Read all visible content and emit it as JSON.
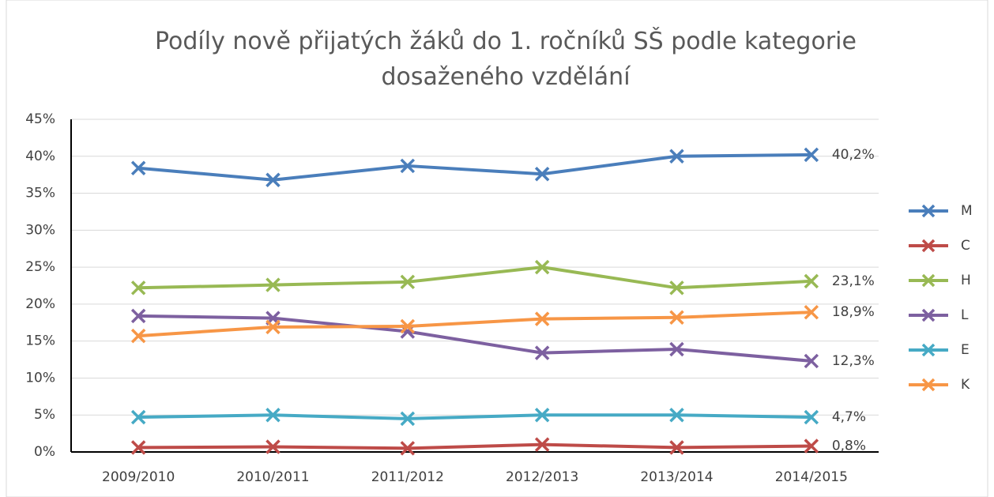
{
  "chart_data": {
    "type": "line",
    "title": "Podíly nově přijatých žáků do 1. ročníků SŠ podle kategorie dosaženého vzdělání",
    "categories": [
      "2009/2010",
      "2010/2011",
      "2011/2012",
      "2012/2013",
      "2013/2014",
      "2014/2015"
    ],
    "series": [
      {
        "name": "M",
        "color": "#4a7ebb",
        "values": [
          38.4,
          36.8,
          38.7,
          37.6,
          40.0,
          40.2
        ],
        "value_labels": [
          null,
          null,
          null,
          null,
          null,
          "40,2%"
        ]
      },
      {
        "name": "C",
        "color": "#be4b48",
        "values": [
          0.6,
          0.7,
          0.5,
          1.0,
          0.6,
          0.8
        ],
        "value_labels": [
          null,
          null,
          null,
          null,
          null,
          "0,8%"
        ]
      },
      {
        "name": "H",
        "color": "#98b954",
        "values": [
          22.2,
          22.6,
          23.0,
          25.0,
          22.2,
          23.1
        ],
        "value_labels": [
          null,
          null,
          null,
          null,
          null,
          "23,1%"
        ]
      },
      {
        "name": "L",
        "color": "#7d60a0",
        "values": [
          18.4,
          18.1,
          16.3,
          13.4,
          13.9,
          12.3
        ],
        "value_labels": [
          null,
          null,
          null,
          null,
          null,
          "12,3%"
        ]
      },
      {
        "name": "E",
        "color": "#46aac5",
        "values": [
          4.7,
          5.0,
          4.5,
          5.0,
          5.0,
          4.7
        ],
        "value_labels": [
          null,
          null,
          null,
          null,
          null,
          "4,7%"
        ]
      },
      {
        "name": "K",
        "color": "#f79646",
        "values": [
          15.7,
          16.9,
          17.0,
          18.0,
          18.2,
          18.9
        ],
        "value_labels": [
          null,
          null,
          null,
          null,
          null,
          "18,9%"
        ]
      }
    ],
    "ylim": [
      0,
      45
    ],
    "yticks": [
      {
        "value": 0,
        "label": "0%"
      },
      {
        "value": 5,
        "label": "5%"
      },
      {
        "value": 10,
        "label": "10%"
      },
      {
        "value": 15,
        "label": "15%"
      },
      {
        "value": 20,
        "label": "20%"
      },
      {
        "value": 25,
        "label": "25%"
      },
      {
        "value": 30,
        "label": "30%"
      },
      {
        "value": 35,
        "label": "35%"
      },
      {
        "value": 40,
        "label": "40%"
      },
      {
        "value": 45,
        "label": "45%"
      }
    ],
    "grid": true,
    "legend": "right"
  }
}
